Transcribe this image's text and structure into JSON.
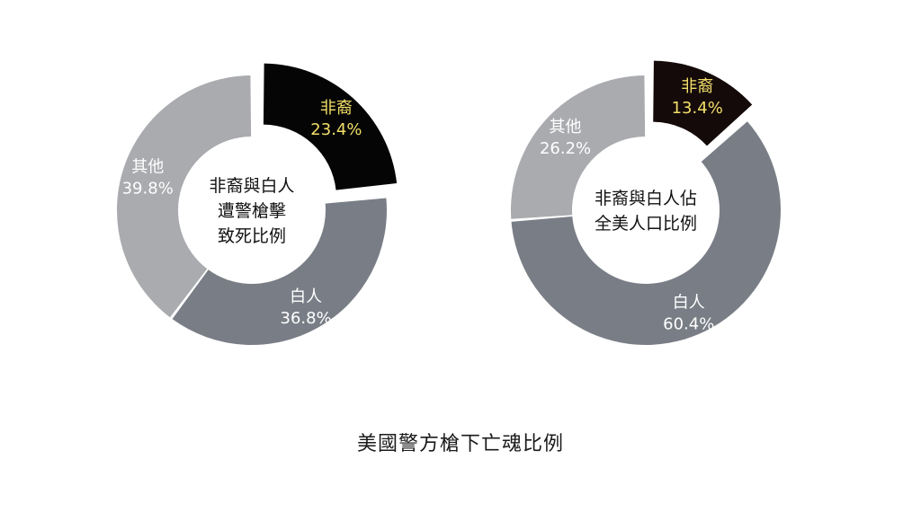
{
  "title": "美國警方槍下亡魂比例",
  "chart_data": [
    {
      "type": "pie",
      "center_label": [
        "非裔與白人",
        "遭警槍擊",
        "致死比例"
      ],
      "slices": [
        {
          "name": "非裔",
          "value": 23.4,
          "label": "23.4%",
          "color": "#050505",
          "name_color": "#f2df6a",
          "value_color": "#f2df6a",
          "exploded": true
        },
        {
          "name": "白人",
          "value": 36.8,
          "label": "36.8%",
          "color": "#797e86",
          "name_color": "#ffffff",
          "value_color": "#ffffff",
          "exploded": false
        },
        {
          "name": "其他",
          "value": 39.8,
          "label": "39.8%",
          "color": "#a9abae",
          "name_color": "#ffffff",
          "value_color": "#ffffff",
          "exploded": false
        }
      ]
    },
    {
      "type": "pie",
      "center_label": [
        "非裔與白人佔",
        "全美人口比例"
      ],
      "slices": [
        {
          "name": "非裔",
          "value": 13.4,
          "label": "13.4%",
          "color": "#150a0a",
          "name_color": "#f2df6a",
          "value_color": "#f2df6a",
          "exploded": true
        },
        {
          "name": "白人",
          "value": 60.4,
          "label": "60.4%",
          "color": "#797e86",
          "name_color": "#ffffff",
          "value_color": "#ffffff",
          "exploded": false
        },
        {
          "name": "其他",
          "value": 26.2,
          "label": "26.2%",
          "color": "#a9abae",
          "name_color": "#ffffff",
          "value_color": "#ffffff",
          "exploded": false
        }
      ]
    }
  ]
}
